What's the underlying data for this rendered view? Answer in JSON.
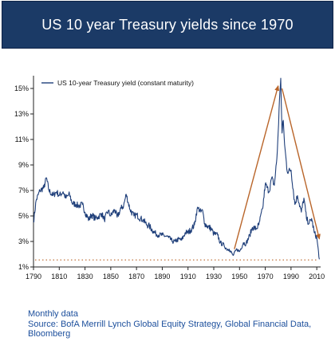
{
  "header": {
    "title": "US 10 year Treasury yields since 1970"
  },
  "footer": {
    "note": "Monthly data",
    "source": "Source: BofA Merrill Lynch Global Equity Strategy, Global Financial Data, Bloomberg"
  },
  "colors": {
    "header_bg": "#1b3a66",
    "series_line": "#1f3f7a",
    "arrow": "#b9652a",
    "dotted_line": "#b9652a",
    "footer_text": "#1c4f9c"
  },
  "chart_data": {
    "type": "line",
    "title": "",
    "xlabel": "",
    "ylabel": "",
    "xlim": [
      1790,
      2013
    ],
    "ylim": [
      1,
      16
    ],
    "x_ticks": [
      1790,
      1810,
      1830,
      1850,
      1870,
      1890,
      1910,
      1930,
      1950,
      1970,
      1990,
      2010
    ],
    "y_ticks": [
      1,
      3,
      5,
      7,
      9,
      11,
      13,
      15
    ],
    "y_tick_labels": [
      "1%",
      "3%",
      "5%",
      "7%",
      "9%",
      "11%",
      "13%",
      "15%"
    ],
    "legend": {
      "position": "top-left"
    },
    "grid": false,
    "series": [
      {
        "name": "US 10-year Treasury yield (constant maturity)",
        "x": [
          1790,
          1792,
          1795,
          1798,
          1800,
          1802,
          1805,
          1808,
          1810,
          1813,
          1815,
          1818,
          1820,
          1823,
          1825,
          1828,
          1830,
          1833,
          1835,
          1838,
          1840,
          1843,
          1845,
          1848,
          1850,
          1853,
          1855,
          1858,
          1860,
          1862,
          1865,
          1868,
          1870,
          1873,
          1875,
          1878,
          1880,
          1883,
          1885,
          1888,
          1890,
          1893,
          1895,
          1898,
          1900,
          1903,
          1905,
          1908,
          1910,
          1913,
          1915,
          1917,
          1918,
          1920,
          1921,
          1923,
          1925,
          1928,
          1930,
          1933,
          1935,
          1938,
          1940,
          1942,
          1945,
          1948,
          1950,
          1953,
          1955,
          1958,
          1960,
          1963,
          1965,
          1968,
          1970,
          1973,
          1975,
          1977,
          1979,
          1980,
          1981,
          1982,
          1983,
          1984,
          1985,
          1987,
          1990,
          1993,
          1995,
          1998,
          2000,
          2002,
          2004,
          2006,
          2008,
          2010,
          2012
        ],
        "values": [
          4.5,
          6.2,
          7.0,
          7.2,
          8.0,
          7.0,
          6.6,
          6.9,
          6.6,
          6.9,
          6.4,
          6.7,
          6.0,
          5.9,
          5.8,
          5.9,
          5.3,
          4.7,
          5.1,
          4.8,
          4.9,
          5.2,
          4.7,
          5.4,
          5.0,
          5.5,
          4.9,
          5.6,
          5.8,
          6.7,
          5.5,
          5.0,
          5.1,
          4.8,
          4.7,
          4.3,
          4.2,
          3.8,
          3.6,
          3.5,
          3.5,
          3.4,
          3.3,
          3.0,
          3.0,
          3.2,
          3.1,
          3.7,
          3.7,
          4.0,
          4.3,
          5.5,
          5.6,
          5.3,
          5.5,
          4.4,
          4.2,
          4.0,
          3.6,
          3.5,
          2.9,
          2.7,
          2.4,
          2.4,
          1.9,
          2.4,
          2.2,
          2.9,
          2.8,
          3.5,
          4.1,
          4.0,
          4.3,
          5.6,
          7.5,
          6.9,
          8.0,
          7.4,
          9.5,
          11.5,
          14.0,
          15.8,
          11.5,
          12.5,
          10.6,
          8.5,
          8.6,
          5.9,
          6.6,
          5.3,
          6.4,
          4.8,
          4.4,
          4.8,
          3.7,
          3.3,
          1.6
        ]
      }
    ],
    "reference_line": {
      "y": 1.55
    },
    "arrows": [
      {
        "from": [
          1946,
          2.4
        ],
        "to": [
          1980,
          15.2
        ]
      },
      {
        "from": [
          1983,
          15.0
        ],
        "to": [
          2012,
          3.2
        ]
      }
    ]
  }
}
